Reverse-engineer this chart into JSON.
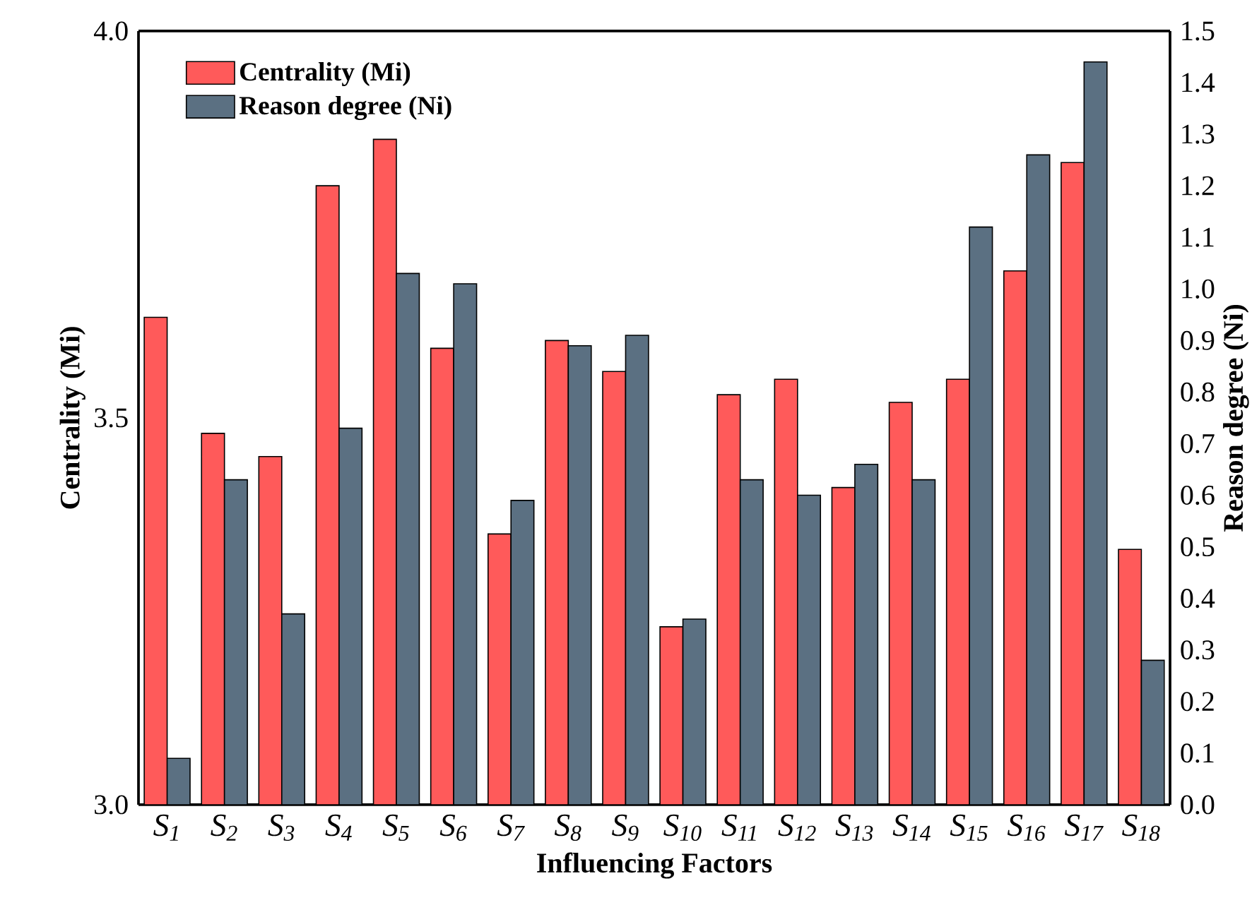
{
  "chart_data": {
    "type": "bar",
    "xlabel": "Influencing Factors",
    "ylabel": "Centrality (Mi)",
    "y2label": "Reason degree (Ni)",
    "categories": [
      "S$_{1}$",
      "S$_{2}$",
      "S$_{3}$",
      "S$_{4}$",
      "S$_{5}$",
      "S$_{6}$",
      "S$_{7}$",
      "S$_{8}$",
      "S$_{9}$",
      "S$_{10}$",
      "S$_{11}$",
      "S$_{12}$",
      "S$_{13}$",
      "S$_{14}$",
      "S$_{15}$",
      "S$_{16}$",
      "S$_{17}$",
      "S$_{18}$"
    ],
    "series": [
      {
        "name": "Centrality (Mi)",
        "color": "#ff5a5a",
        "values": [
          3.63,
          3.48,
          3.45,
          3.8,
          3.86,
          3.59,
          3.35,
          3.6,
          3.56,
          3.23,
          3.53,
          3.55,
          3.41,
          3.52,
          3.55,
          3.69,
          3.83,
          3.33
        ]
      },
      {
        "name": "Reason degree (Ni)",
        "color": "#5b7082",
        "axis": "y2",
        "values": [
          0.09,
          0.63,
          0.37,
          0.73,
          1.03,
          1.01,
          0.59,
          0.89,
          0.91,
          0.36,
          0.63,
          0.6,
          0.66,
          0.63,
          1.12,
          1.26,
          1.44,
          0.28
        ]
      }
    ],
    "ylim": [
      3.0,
      4.0
    ],
    "yticks": [
      {
        "value": 3,
        "label": "3.0"
      },
      {
        "value": 3.5,
        "label": "3.5"
      },
      {
        "value": 4,
        "label": "4.0"
      }
    ],
    "y2lim": [
      0.0,
      1.5
    ],
    "y2ticks": [
      {
        "value": 0,
        "label": "0.0"
      },
      {
        "value": 0.1,
        "label": "0.1"
      },
      {
        "value": 0.2,
        "label": "0.2"
      },
      {
        "value": 0.3,
        "label": "0.3"
      },
      {
        "value": 0.4,
        "label": "0.4"
      },
      {
        "value": 0.5,
        "label": "0.5"
      },
      {
        "value": 0.6,
        "label": "0.6"
      },
      {
        "value": 0.7,
        "label": "0.7"
      },
      {
        "value": 0.8,
        "label": "0.8"
      },
      {
        "value": 0.9,
        "label": "0.9"
      },
      {
        "value": 1,
        "label": "1.0"
      },
      {
        "value": 1.1,
        "label": "1.1"
      },
      {
        "value": 1.2,
        "label": "1.2"
      },
      {
        "value": 1.3,
        "label": "1.3"
      },
      {
        "value": 1.4,
        "label": "1.4"
      },
      {
        "value": 1.5,
        "label": "1.5"
      }
    ],
    "legend": "top left"
  }
}
